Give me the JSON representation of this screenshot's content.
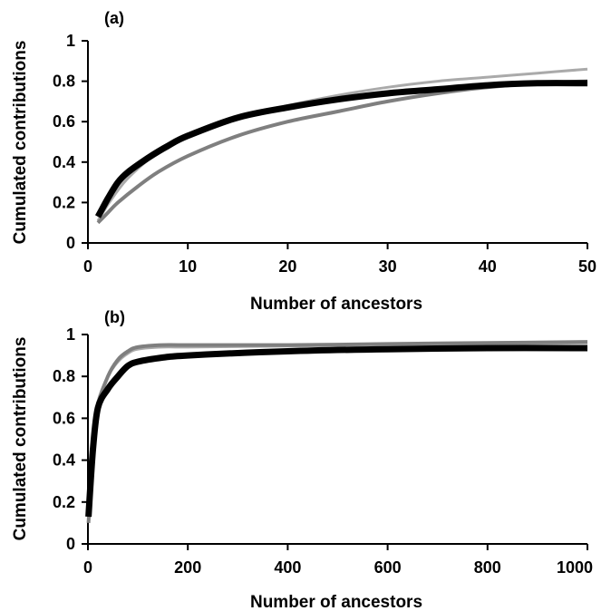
{
  "chart_data": [
    {
      "type": "line",
      "panel_label": "(a)",
      "xlabel": "Number of ancestors",
      "ylabel": "Cumulated contributions",
      "xlim": [
        0,
        50
      ],
      "ylim": [
        0,
        1
      ],
      "xticks": [
        0,
        10,
        20,
        30,
        40,
        50
      ],
      "yticks": [
        0,
        0.2,
        0.4,
        0.6,
        0.8,
        1
      ],
      "xtick_labels": [
        "0",
        "10",
        "20",
        "30",
        "40",
        "50"
      ],
      "ytick_labels": [
        "0",
        "0.2",
        "0.4",
        "0.6",
        "0.8",
        "1"
      ],
      "grid": false,
      "legend": "none",
      "series": [
        {
          "color": "#aaaaaa",
          "x": [
            1,
            2,
            3,
            4,
            6,
            8,
            10,
            15,
            20,
            25,
            30,
            35,
            40,
            45,
            50
          ],
          "y": [
            0.11,
            0.19,
            0.26,
            0.32,
            0.41,
            0.48,
            0.53,
            0.62,
            0.68,
            0.73,
            0.77,
            0.8,
            0.82,
            0.84,
            0.86
          ]
        },
        {
          "color": "#7f7f7f",
          "x": [
            1,
            2,
            3,
            5,
            7,
            10,
            15,
            20,
            25,
            30,
            35,
            40,
            45,
            50
          ],
          "y": [
            0.1,
            0.15,
            0.2,
            0.28,
            0.35,
            0.43,
            0.53,
            0.6,
            0.65,
            0.7,
            0.74,
            0.77,
            0.79,
            0.8
          ]
        },
        {
          "color": "#000000",
          "x": [
            1,
            2,
            3,
            4,
            6,
            8,
            10,
            15,
            20,
            25,
            30,
            35,
            40,
            45,
            50
          ],
          "y": [
            0.13,
            0.22,
            0.3,
            0.35,
            0.42,
            0.48,
            0.53,
            0.62,
            0.67,
            0.71,
            0.74,
            0.76,
            0.78,
            0.79,
            0.79
          ]
        }
      ]
    },
    {
      "type": "line",
      "panel_label": "(b)",
      "xlabel": "Number of ancestors",
      "ylabel": "Cumulated contributions",
      "xlim": [
        0,
        1000
      ],
      "ylim": [
        0,
        1
      ],
      "xticks": [
        0,
        200,
        400,
        600,
        800,
        1000
      ],
      "yticks": [
        0,
        0.2,
        0.4,
        0.6,
        0.8,
        1
      ],
      "xtick_labels": [
        "0",
        "200",
        "400",
        "600",
        "800",
        "1000"
      ],
      "ytick_labels": [
        "0",
        "0.2",
        "0.4",
        "0.6",
        "0.8",
        "1"
      ],
      "grid": false,
      "legend": "none",
      "series": [
        {
          "color": "#aaaaaa",
          "x": [
            1,
            10,
            20,
            40,
            60,
            80,
            100,
            150,
            200,
            400,
            600,
            800,
            1000
          ],
          "y": [
            0.11,
            0.5,
            0.68,
            0.8,
            0.87,
            0.91,
            0.93,
            0.94,
            0.94,
            0.945,
            0.95,
            0.955,
            0.96
          ]
        },
        {
          "color": "#7f7f7f",
          "x": [
            1,
            10,
            20,
            40,
            60,
            80,
            100,
            150,
            200,
            400,
            600,
            800,
            1000
          ],
          "y": [
            0.1,
            0.45,
            0.66,
            0.8,
            0.88,
            0.92,
            0.94,
            0.95,
            0.95,
            0.95,
            0.955,
            0.96,
            0.965
          ]
        },
        {
          "color": "#000000",
          "x": [
            1,
            10,
            20,
            40,
            60,
            80,
            100,
            150,
            200,
            400,
            600,
            800,
            1000
          ],
          "y": [
            0.13,
            0.45,
            0.65,
            0.74,
            0.8,
            0.85,
            0.87,
            0.89,
            0.9,
            0.92,
            0.93,
            0.935,
            0.935
          ]
        }
      ]
    }
  ]
}
